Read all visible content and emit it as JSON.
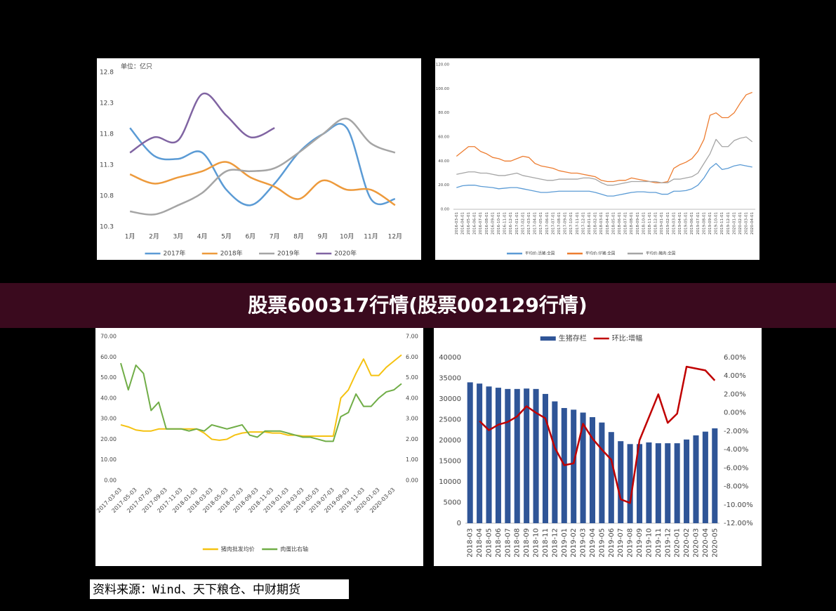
{
  "page": {
    "banner": "股票600317行情(股票002129行情)",
    "source": "资料来源：Wind、天下粮仓、中财期货"
  },
  "chart_data": [
    {
      "type": "line",
      "unit": "单位：亿只",
      "smooth": true,
      "legend": "bottom",
      "categories": [
        "1月",
        "2月",
        "3月",
        "4月",
        "5月",
        "6月",
        "7月",
        "8月",
        "9月",
        "10月",
        "11月",
        "12月"
      ],
      "ylim": [
        10.3,
        12.8
      ],
      "yticks": [
        10.3,
        10.8,
        11.3,
        11.8,
        12.3,
        12.8
      ],
      "series": [
        {
          "name": "2017年",
          "color": "#5b9bd5",
          "values": [
            11.9,
            11.45,
            11.4,
            11.5,
            10.9,
            10.65,
            11.0,
            11.5,
            11.8,
            11.9,
            10.75,
            10.75
          ]
        },
        {
          "name": "2018年",
          "color": "#ed9a3c",
          "values": [
            11.15,
            11.0,
            11.1,
            11.2,
            11.35,
            11.1,
            10.95,
            10.75,
            11.05,
            10.9,
            10.9,
            10.65
          ]
        },
        {
          "name": "2019年",
          "color": "#a5a5a5",
          "values": [
            10.55,
            10.5,
            10.65,
            10.85,
            11.2,
            11.2,
            11.25,
            11.5,
            11.8,
            12.05,
            11.65,
            11.5
          ]
        },
        {
          "name": "2020年",
          "color": "#8064a2",
          "values": [
            11.5,
            11.75,
            11.7,
            12.45,
            12.1,
            11.75,
            11.9,
            null,
            null,
            null,
            null,
            null
          ]
        }
      ]
    },
    {
      "type": "line",
      "legend": "bottom",
      "categories": [
        "2016-03-01",
        "2016-04-01",
        "2016-05-01",
        "2016-06-01",
        "2016-07-01",
        "2016-08-01",
        "2016-09-01",
        "2016-10-01",
        "2016-11-01",
        "2016-12-01",
        "2017-01-01",
        "2017-02-01",
        "2017-03-01",
        "2017-04-01",
        "2017-05-01",
        "2017-06-01",
        "2017-07-01",
        "2017-08-01",
        "2017-09-01",
        "2017-10-01",
        "2017-11-01",
        "2017-12-01",
        "2018-01-01",
        "2018-02-01",
        "2018-03-01",
        "2018-04-01",
        "2018-05-01",
        "2018-06-01",
        "2018-07-01",
        "2018-08-01",
        "2018-09-01",
        "2018-10-01",
        "2018-11-01",
        "2018-12-01",
        "2019-01-01",
        "2019-02-01",
        "2019-03-01",
        "2019-04-01",
        "2019-05-01",
        "2019-06-01",
        "2019-07-01",
        "2019-08-01",
        "2019-09-01",
        "2019-10-01",
        "2019-11-01",
        "2019-12-01",
        "2020-01-01",
        "2020-02-01",
        "2020-03-01",
        "2020-04-01"
      ],
      "ylim": [
        0,
        120
      ],
      "yticks": [
        {
          "value": 0,
          "label": "0.00"
        },
        {
          "value": 20,
          "label": "20.00"
        },
        {
          "value": 40,
          "label": "40.00"
        },
        {
          "value": 60,
          "label": "60.00"
        },
        {
          "value": 80,
          "label": "80.00"
        },
        {
          "value": 100,
          "label": "100.00"
        },
        {
          "value": 120,
          "label": "120.00"
        }
      ],
      "series": [
        {
          "name": "平均价:活猪:全国",
          "color": "#5b9bd5",
          "values": [
            18,
            19.5,
            20,
            20,
            19,
            18.5,
            18,
            17,
            17.5,
            18,
            18,
            17,
            16,
            15,
            14,
            14,
            14.5,
            15,
            15,
            15,
            15,
            15,
            15,
            14,
            12.5,
            11,
            11,
            12,
            13,
            14,
            14.5,
            14.5,
            14,
            14,
            12.5,
            12.5,
            15,
            15,
            15.5,
            17,
            20,
            26,
            34,
            38,
            33,
            34,
            36,
            37,
            36,
            35
          ]
        },
        {
          "name": "平均价:仔猪:全国",
          "color": "#ed7d31",
          "values": [
            44,
            48,
            52,
            52,
            48,
            46,
            43,
            42,
            40,
            40,
            42,
            44,
            43,
            38,
            36,
            35,
            34,
            32,
            31,
            30,
            30,
            29,
            28,
            27,
            24,
            23,
            23,
            24,
            24,
            26,
            25,
            24,
            23,
            22,
            22,
            23,
            34,
            37,
            39,
            42,
            48,
            58,
            78,
            80,
            76,
            76,
            80,
            88,
            95,
            97
          ]
        },
        {
          "name": "平均价:猪肉:全国",
          "color": "#a5a5a5",
          "values": [
            29,
            30,
            31,
            31,
            30,
            30,
            29,
            28,
            28,
            29,
            30,
            28,
            27,
            26,
            25,
            24,
            24,
            25,
            25,
            25,
            25,
            26,
            26,
            25,
            22,
            20,
            20,
            21,
            22,
            23,
            23,
            23,
            23,
            23,
            22,
            22,
            25,
            25,
            26,
            27,
            30,
            38,
            46,
            58,
            52,
            52,
            57,
            59,
            60,
            56
          ]
        }
      ]
    },
    {
      "type": "line",
      "legend": "bottom",
      "categories": [
        "2017-03-03",
        null,
        "2017-05-03",
        null,
        "2017-07-03",
        null,
        "2017-09-03",
        null,
        "2017-11-03",
        null,
        "2018-01-03",
        null,
        "2018-03-03",
        null,
        "2018-05-03",
        null,
        "2018-07-03",
        null,
        "2018-09-03",
        null,
        "2018-11-03",
        null,
        "2019-01-03",
        null,
        "2019-03-03",
        null,
        "2019-05-03",
        null,
        "2019-07-03",
        null,
        "2019-09-03",
        null,
        "2019-11-03",
        null,
        "2020-01-03",
        null,
        "2020-03-03",
        null
      ],
      "ylim": [
        0,
        70
      ],
      "yticks": [
        {
          "value": 0,
          "label": "0.00"
        },
        {
          "value": 10,
          "label": "10.00"
        },
        {
          "value": 20,
          "label": "20.00"
        },
        {
          "value": 30,
          "label": "30.00"
        },
        {
          "value": 40,
          "label": "40.00"
        },
        {
          "value": 50,
          "label": "50.00"
        },
        {
          "value": 60,
          "label": "60.00"
        },
        {
          "value": 70,
          "label": "70.00"
        }
      ],
      "y2lim": [
        0,
        7
      ],
      "y2ticks": [
        {
          "value": 0,
          "label": "0.00"
        },
        {
          "value": 1,
          "label": "1.00"
        },
        {
          "value": 2,
          "label": "2.00"
        },
        {
          "value": 3,
          "label": "3.00"
        },
        {
          "value": 4,
          "label": "4.00"
        },
        {
          "value": 5,
          "label": "5.00"
        },
        {
          "value": 6,
          "label": "6.00"
        },
        {
          "value": 7,
          "label": "7.00"
        }
      ],
      "series": [
        {
          "name": "猪肉批发均价",
          "color": "#f5c211",
          "values": [
            27,
            26,
            24.5,
            24,
            24,
            25,
            25,
            25,
            25,
            25,
            25,
            23,
            20,
            19.5,
            20,
            22,
            23,
            23.5,
            23.5,
            23.5,
            23,
            23,
            22,
            22,
            21.5,
            21.5,
            21.5,
            21.5,
            21.5,
            40,
            44,
            52,
            59,
            51,
            51,
            55,
            58,
            61
          ]
        },
        {
          "name": "肉蛋比右轴",
          "color": "#70ad47",
          "axis": "y2",
          "values": [
            5.7,
            4.4,
            5.6,
            5.2,
            3.4,
            3.8,
            2.5,
            2.5,
            2.5,
            2.4,
            2.5,
            2.4,
            2.7,
            2.6,
            2.5,
            2.6,
            2.7,
            2.2,
            2.1,
            2.4,
            2.4,
            2.4,
            2.3,
            2.2,
            2.1,
            2.1,
            2.0,
            1.9,
            1.9,
            3.1,
            3.3,
            4.2,
            3.6,
            3.6,
            4.0,
            4.3,
            4.4,
            4.7
          ]
        }
      ]
    },
    {
      "type": "bar",
      "legend": "top",
      "categories": [
        "2018-03",
        "2018-04",
        "2018-05",
        "2018-06",
        "2018-07",
        "2018-08",
        "2018-09",
        "2018-10",
        "2018-11",
        "2018-12",
        "2019-01",
        "2019-02",
        "2019-03",
        "2019-04",
        "2019-05",
        "2019-06",
        "2019-07",
        "2019-08",
        "2019-09",
        "2019-10",
        "2019-11",
        "2019-12",
        "2020-01",
        "2020-02",
        "2020-03",
        "2020-04",
        "2020-05"
      ],
      "ylim": [
        0,
        40000
      ],
      "yticks": [
        0,
        5000,
        10000,
        15000,
        20000,
        25000,
        30000,
        35000,
        40000
      ],
      "y2lim": [
        -12,
        6
      ],
      "y2ticks": [
        {
          "value": -12,
          "label": "-12.00%"
        },
        {
          "value": -10,
          "label": "-10.00%"
        },
        {
          "value": -8,
          "label": "-8.00%"
        },
        {
          "value": -6,
          "label": "-6.00%"
        },
        {
          "value": -4,
          "label": "-4.00%"
        },
        {
          "value": -2,
          "label": "-2.00%"
        },
        {
          "value": 0,
          "label": "0.00%"
        },
        {
          "value": 2,
          "label": "2.00%"
        },
        {
          "value": 4,
          "label": "4.00%"
        },
        {
          "value": 6,
          "label": "6.00%"
        }
      ],
      "series": [
        {
          "name": "生猪存栏",
          "color": "#2f5597",
          "values": [
            34000,
            33700,
            33000,
            32700,
            32400,
            32400,
            32500,
            32400,
            31200,
            29400,
            27800,
            27400,
            26700,
            25600,
            24300,
            22000,
            19800,
            19100,
            19100,
            19500,
            19300,
            19300,
            19300,
            20200,
            21200,
            22100,
            22900
          ]
        },
        {
          "name": "环比:增幅",
          "color": "#c00000",
          "type": "line",
          "axis": "y2",
          "values": [
            null,
            -0.9,
            -1.9,
            -1.3,
            -1.0,
            -0.4,
            0.7,
            0.0,
            -0.6,
            -3.8,
            -5.7,
            -5.5,
            -1.2,
            -2.8,
            -4.0,
            -5.1,
            -9.4,
            -9.8,
            -3.0,
            -0.5,
            2.0,
            -1.1,
            -0.1,
            5.0,
            4.8,
            4.6,
            3.5
          ]
        }
      ]
    }
  ]
}
